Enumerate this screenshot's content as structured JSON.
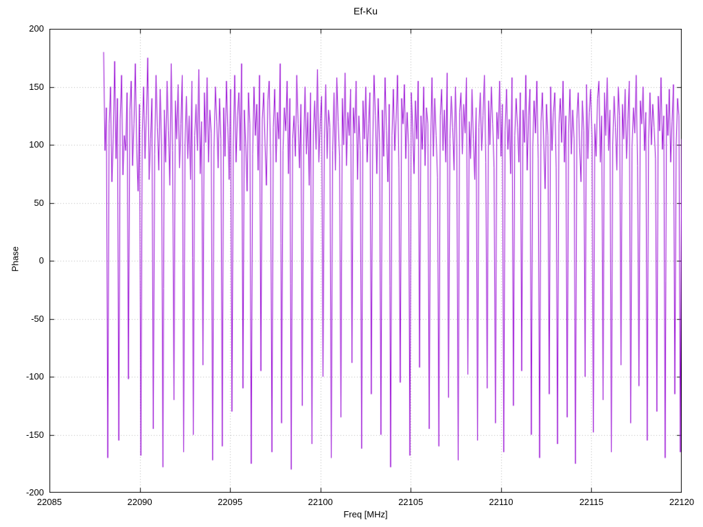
{
  "chart_data": {
    "type": "line",
    "title": "Ef-Ku",
    "xlabel": "Freq [MHz]",
    "ylabel": "Phase",
    "xlim": [
      22085,
      22120
    ],
    "ylim": [
      -200,
      200
    ],
    "x_ticks": [
      22085,
      22090,
      22095,
      22100,
      22105,
      22110,
      22115,
      22120
    ],
    "y_ticks": [
      -200,
      -150,
      -100,
      -50,
      0,
      50,
      100,
      150,
      200
    ],
    "grid": true,
    "legend": "none",
    "line_color": "#9400d3",
    "grid_color": "#b5b5b5",
    "border_color": "#000000",
    "series": [
      {
        "name": "phase",
        "x_start": 22088.0,
        "x_end": 22120.0,
        "values": [
          180,
          95,
          132,
          -170,
          118,
          150,
          68,
          105,
          172,
          88,
          140,
          -155,
          122,
          160,
          74,
          108,
          95,
          145,
          -102,
          130,
          155,
          82,
          118,
          170,
          96,
          60,
          135,
          -168,
          110,
          150,
          88,
          125,
          175,
          70,
          105,
          140,
          -145,
          92,
          160,
          115,
          78,
          148,
          100,
          -178,
          130,
          85,
          155,
          112,
          65,
          170,
          95,
          -120,
          138,
          105,
          152,
          80,
          118,
          160,
          -165,
          100,
          142,
          88,
          125,
          70,
          155,
          -150,
          108,
          135,
          95,
          165,
          75,
          120,
          -90,
          145,
          102,
          158,
          85,
          130,
          110,
          -172,
          96,
          150,
          120,
          80,
          140,
          105,
          -160,
          132,
          90,
          155,
          115,
          70,
          148,
          -130,
          100,
          160,
          85,
          125,
          145,
          95,
          170,
          -110,
          130,
          100,
          60,
          145,
          118,
          -175,
          92,
          150,
          108,
          135,
          78,
          160,
          -95,
          122,
          145,
          100,
          65,
          138,
          155,
          90,
          -165,
          115,
          148,
          85,
          128,
          105,
          170,
          -140,
          95,
          132,
          112,
          155,
          75,
          140,
          -180,
          105,
          125,
          90,
          160,
          118,
          80,
          135,
          -125,
          100,
          150,
          92,
          128,
          65,
          145,
          -158,
          110,
          138,
          96,
          165,
          85,
          120,
          142,
          -100,
          105,
          152,
          88,
          130,
          115,
          -170,
          95,
          145,
          78,
          158,
          120,
          90,
          -135,
          140,
          100,
          162,
          82,
          128,
          108,
          148,
          -88,
          132,
          110,
          155,
          70,
          125,
          95,
          -162,
          138,
          105,
          150,
          85,
          118,
          145,
          -115,
          98,
          160,
          125,
          75,
          140,
          102,
          -150,
          130,
          90,
          158,
          112,
          68,
          135,
          -178,
          108,
          148,
          95,
          122,
          160,
          80,
          -105,
          140,
          118,
          152,
          88,
          128,
          100,
          -168,
          145,
          115,
          75,
          138,
          105,
          155,
          -92,
          125,
          96,
          150,
          82,
          132,
          118,
          -145,
          100,
          158,
          90,
          140,
          108,
          72,
          -160,
          125,
          148,
          95,
          130,
          85,
          162,
          -118,
          105,
          142,
          115,
          78,
          150,
          100,
          -172,
          128,
          145,
          92,
          135,
          110,
          158,
          -98,
          120,
          88,
          148,
          105,
          70,
          132,
          -155,
          115,
          145,
          95,
          125,
          160,
          85,
          -110,
          138,
          100,
          150,
          118,
          80,
          -140,
          128,
          105,
          155,
          90,
          135,
          -165,
          112,
          148,
          96,
          122,
          75,
          158,
          -125,
          108,
          140,
          115,
          85,
          145,
          -95,
          130,
          102,
          160,
          78,
          125,
          148,
          -150,
          98,
          138,
          110,
          155,
          88,
          -170,
          120,
          145,
          100,
          62,
          135,
          108,
          -115,
          150,
          95,
          128,
          145,
          80,
          -158,
          118,
          140,
          102,
          155,
          85,
          125,
          -135,
          110,
          148,
          92,
          130,
          105,
          -175,
          122,
          145,
          98,
          68,
          138,
          112,
          -100,
          152,
          88,
          128,
          148,
          105,
          -148,
          118,
          90,
          140,
          155,
          85,
          125,
          -120,
          145,
          108,
          158,
          95,
          130,
          -165,
          100,
          142,
          115,
          78,
          150,
          125,
          -90,
          135,
          105,
          148,
          88,
          122,
          155,
          -140,
          98,
          132,
          110,
          160,
          82,
          -108,
          138,
          118,
          150,
          95,
          128,
          -155,
          105,
          145,
          100,
          135,
          115,
          88,
          -130,
          142,
          112,
          158,
          96,
          125,
          -170,
          135,
          108,
          148,
          85,
          120,
          152,
          -115,
          100,
          140,
          125,
          -165,
          105
        ]
      }
    ]
  }
}
